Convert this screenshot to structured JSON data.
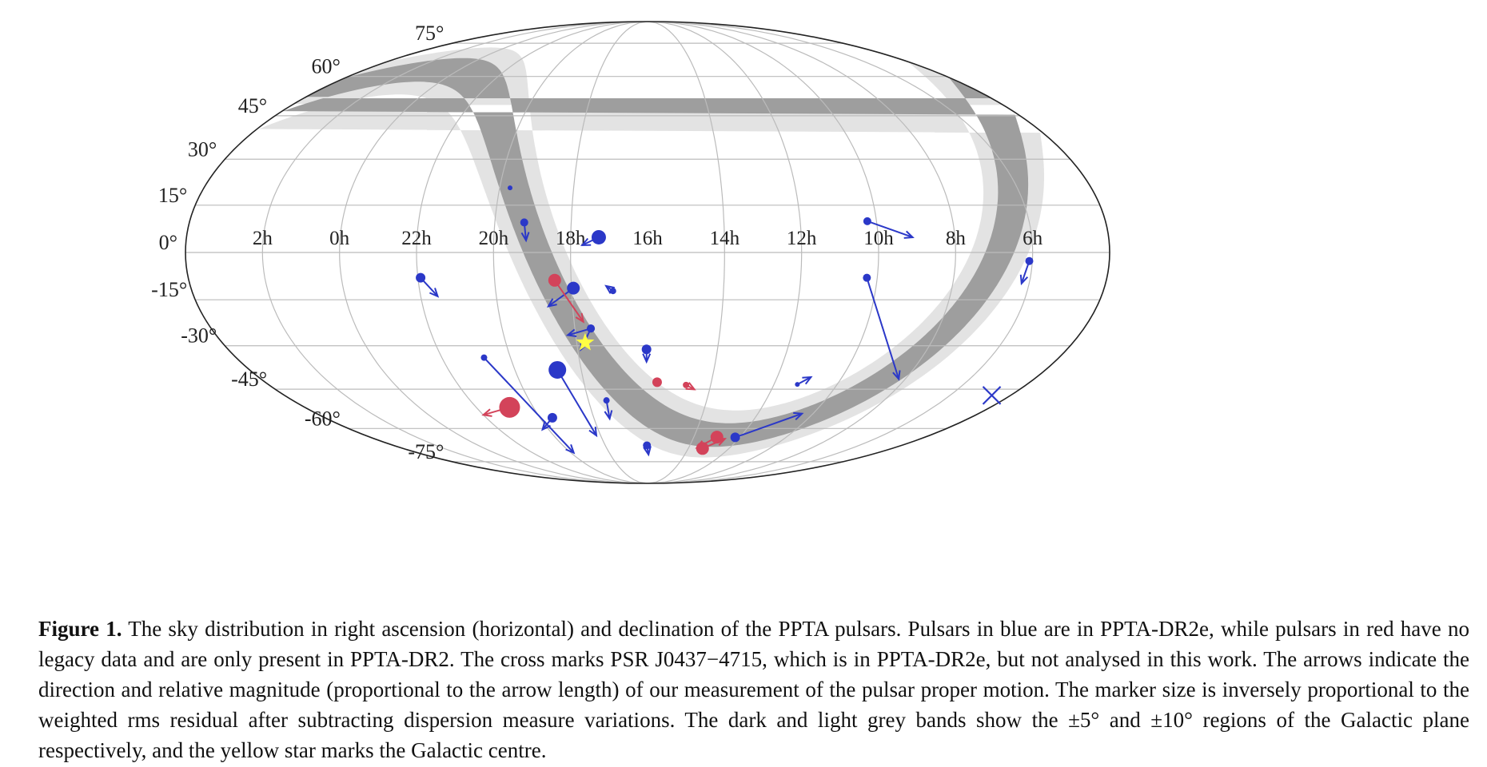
{
  "caption": {
    "label": "Figure 1.",
    "text": "The sky distribution in right ascension (horizontal) and declination of the PPTA pulsars. Pulsars in blue are in PPTA-DR2e, while pulsars in red have no legacy data and are only present in PPTA-DR2. The cross marks PSR J0437−4715, which is in PPTA-DR2e, but not analysed in this work. The arrows indicate the direction and relative magnitude (proportional to the arrow length) of our measurement of the pulsar proper motion. The marker size is inversely proportional to the weighted rms residual after subtracting dispersion measure variations. The dark and light grey bands show the ±5° and ±10° regions of the Galactic plane respectively, and the yellow star marks the Galactic centre."
  },
  "chart_data": {
    "type": "scatter",
    "projection": "mollweide",
    "xlabel": "",
    "ylabel": "",
    "x_tick_labels": [
      "2h",
      "0h",
      "22h",
      "20h",
      "18h",
      "16h",
      "14h",
      "12h",
      "10h",
      "8h",
      "6h"
    ],
    "x_tick_hours": [
      2,
      0,
      22,
      20,
      18,
      16,
      14,
      12,
      10,
      8,
      6
    ],
    "y_tick_labels": [
      "75°",
      "60°",
      "45°",
      "30°",
      "15°",
      "0°",
      "-15°",
      "-30°",
      "-45°",
      "-60°",
      "-75°"
    ],
    "y_tick_degrees": [
      75,
      60,
      45,
      30,
      15,
      0,
      -15,
      -30,
      -45,
      -60,
      -75
    ],
    "center_ra_hours": 16,
    "grid": true,
    "bands": [
      {
        "name": "±10° Galactic plane",
        "half_width_deg": 10,
        "color": "#e3e3e3"
      },
      {
        "name": "±5° Galactic plane",
        "half_width_deg": 5,
        "color": "#9e9e9e"
      }
    ],
    "colors": {
      "dr2e": "#2b38c8",
      "dr2_only": "#d3435a",
      "galactic_centre": "#ffff44",
      "gridline": "#bbbbbb",
      "outline": "#222222"
    },
    "galactic_centre": {
      "ra_h": 17.76,
      "dec": -28.94
    },
    "excluded_pulsar": {
      "name": "PSR J0437−4715",
      "ra_h": 4.62,
      "dec": -47.25
    },
    "series": [
      {
        "name": "PPTA-DR2e",
        "color_key": "dr2e",
        "points": [
          {
            "ra_h": 19.72,
            "dec": 20.6,
            "size": 3
          },
          {
            "ra_h": 19.23,
            "dec": 9.5,
            "size": 5,
            "arrow_end": {
              "ra_h": 19.16,
              "dec": 3.8
            }
          },
          {
            "ra_h": 17.27,
            "dec": 4.8,
            "size": 9,
            "arrow_end": {
              "ra_h": 17.7,
              "dec": 2.3
            }
          },
          {
            "ra_h": 10.24,
            "dec": 9.9,
            "size": 5,
            "arrow_end": {
              "ra_h": 9.1,
              "dec": 4.8
            }
          },
          {
            "ra_h": 6.08,
            "dec": -2.7,
            "size": 5,
            "arrow_end": {
              "ra_h": 6.2,
              "dec": -9.8
            }
          },
          {
            "ra_h": 10.27,
            "dec": -8.0,
            "size": 5,
            "arrow_end": {
              "ra_h": 8.2,
              "dec": -41.4
            }
          },
          {
            "ra_h": 21.93,
            "dec": -8.0,
            "size": 6,
            "arrow_end": {
              "ra_h": 21.55,
              "dec": -13.9
            }
          },
          {
            "ra_h": 17.95,
            "dec": -11.3,
            "size": 8,
            "arrow_end": {
              "ra_h": 18.65,
              "dec": -17.1
            }
          },
          {
            "ra_h": 16.91,
            "dec": -12.2,
            "size": 4,
            "arrow_end": {
              "ra_h": 17.09,
              "dec": -10.6
            }
          },
          {
            "ra_h": 17.56,
            "dec": -24.3,
            "size": 5,
            "arrow_end": {
              "ra_h": 18.22,
              "dec": -26.5
            }
          },
          {
            "ra_h": 17.56,
            "dec": -24.3,
            "size": 5,
            "arrow_end": {
              "ra_h": 17.91,
              "dec": -31.3
            }
          },
          {
            "ra_h": 16.03,
            "dec": -31.2,
            "size": 6,
            "arrow_end": {
              "ra_h": 16.03,
              "dec": -35.4
            }
          },
          {
            "ra_h": 18.72,
            "dec": -38.2,
            "size": 11,
            "arrow_end": {
              "ra_h": 18.18,
              "dec": -62.9
            }
          },
          {
            "ra_h": 20.77,
            "dec": -34.0,
            "size": 4,
            "arrow_end": {
              "ra_h": 19.85,
              "dec": -70.6
            }
          },
          {
            "ra_h": 19.54,
            "dec": -55.7,
            "size": 6,
            "arrow_end": {
              "ra_h": 20.25,
              "dec": -60.4
            }
          },
          {
            "ra_h": 17.39,
            "dec": -49.1,
            "size": 4,
            "arrow_end": {
              "ra_h": 17.42,
              "dec": -56.1
            }
          },
          {
            "ra_h": 16.03,
            "dec": -67.2,
            "size": 5,
            "arrow_end": {
              "ra_h": 15.95,
              "dec": -71.5
            }
          },
          {
            "ra_h": 11.26,
            "dec": -43.3,
            "size": 3,
            "arrow_end": {
              "ra_h": 10.96,
              "dec": -40.7
            }
          },
          {
            "ra_h": 12.2,
            "dec": -63.7,
            "size": 6,
            "arrow_end": {
              "ra_h": 10.4,
              "dec": -54.1
            }
          }
        ]
      },
      {
        "name": "PPTA-DR2 only",
        "color_key": "dr2_only",
        "points": [
          {
            "ra_h": 18.43,
            "dec": -8.8,
            "size": 8,
            "arrow_end": {
              "ra_h": 17.75,
              "dec": -22.1
            }
          },
          {
            "ra_h": 20.83,
            "dec": -51.7,
            "size": 13,
            "arrow_end": {
              "ra_h": 22.0,
              "dec": -54.6
            }
          },
          {
            "ra_h": 15.7,
            "dec": -42.5,
            "size": 6
          },
          {
            "ra_h": 14.78,
            "dec": -43.5,
            "size": 4,
            "arrow_end": {
              "ra_h": 14.49,
              "dec": -45.1
            }
          },
          {
            "ra_h": 13.0,
            "dec": -63.6,
            "size": 8,
            "arrow_end": {
              "ra_h": 13.6,
              "dec": -68.3
            }
          },
          {
            "ra_h": 13.3,
            "dec": -68.6,
            "size": 8,
            "arrow_end": {
              "ra_h": 12.6,
              "dec": -64.3
            }
          }
        ]
      }
    ]
  }
}
